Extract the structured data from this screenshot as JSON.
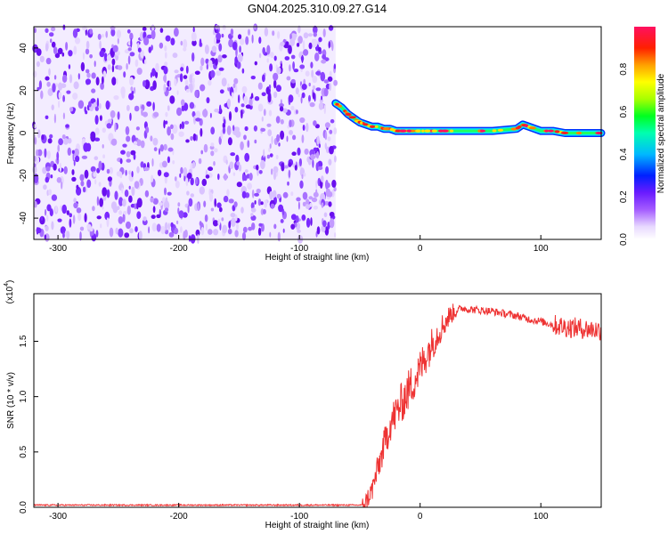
{
  "title": "GN04.2025.310.09.27.G14",
  "chart_data": [
    {
      "type": "heatmap",
      "xlabel": "Height of straight line (km)",
      "ylabel": "Frequency (Hz)",
      "xlim": [
        -320,
        150
      ],
      "ylim": [
        -50,
        50
      ],
      "xticks": [
        -300,
        -200,
        -100,
        0,
        100
      ],
      "yticks": [
        -40,
        -20,
        0,
        20,
        40
      ],
      "colorbar": {
        "label": "Normalized spectral amplitude",
        "range": [
          0,
          1
        ],
        "ticks": [
          "0.0",
          "0.2",
          "0.4",
          "0.6",
          "0.8"
        ],
        "colormap": "rainbow"
      },
      "noise_region_x": [
        -320,
        -70
      ],
      "signal_track": {
        "x": [
          -70,
          -65,
          -60,
          -55,
          -50,
          -45,
          -40,
          -35,
          -30,
          -25,
          -20,
          -15,
          -10,
          -5,
          0,
          10,
          20,
          40,
          60,
          80,
          85,
          90,
          100,
          110,
          120,
          150
        ],
        "freq": [
          14,
          12,
          9,
          7,
          5,
          4,
          3,
          3,
          2,
          2,
          1,
          1,
          1,
          1,
          1,
          1,
          1,
          1,
          1,
          2,
          4,
          3,
          1,
          1,
          0,
          0
        ]
      }
    },
    {
      "type": "line",
      "xlabel": "Height of straight line (km)",
      "ylabel": "SNR (10 * v/v)",
      "multiplier_label": "(x10",
      "multiplier_exp": "4",
      "xlim": [
        -320,
        150
      ],
      "ylim": [
        0,
        1.93
      ],
      "xticks": [
        -300,
        -200,
        -100,
        0,
        100
      ],
      "yticks": [
        "0.0",
        "0.5",
        "1.0",
        "1.5"
      ],
      "series": [
        {
          "color": "#ee3333",
          "x": [
            -320,
            -100,
            -48,
            -45,
            -40,
            -35,
            -30,
            -25,
            -20,
            -15,
            -10,
            -5,
            0,
            5,
            10,
            15,
            20,
            25,
            30,
            35,
            40,
            50,
            60,
            70,
            80,
            90,
            100,
            110,
            120,
            130,
            140,
            150
          ],
          "y": [
            0.02,
            0.02,
            0.02,
            0.05,
            0.15,
            0.35,
            0.55,
            0.75,
            0.85,
            0.95,
            1.05,
            1.15,
            1.25,
            1.38,
            1.48,
            1.58,
            1.66,
            1.74,
            1.78,
            1.8,
            1.79,
            1.78,
            1.77,
            1.75,
            1.73,
            1.7,
            1.68,
            1.65,
            1.63,
            1.62,
            1.61,
            1.6
          ]
        }
      ]
    }
  ]
}
